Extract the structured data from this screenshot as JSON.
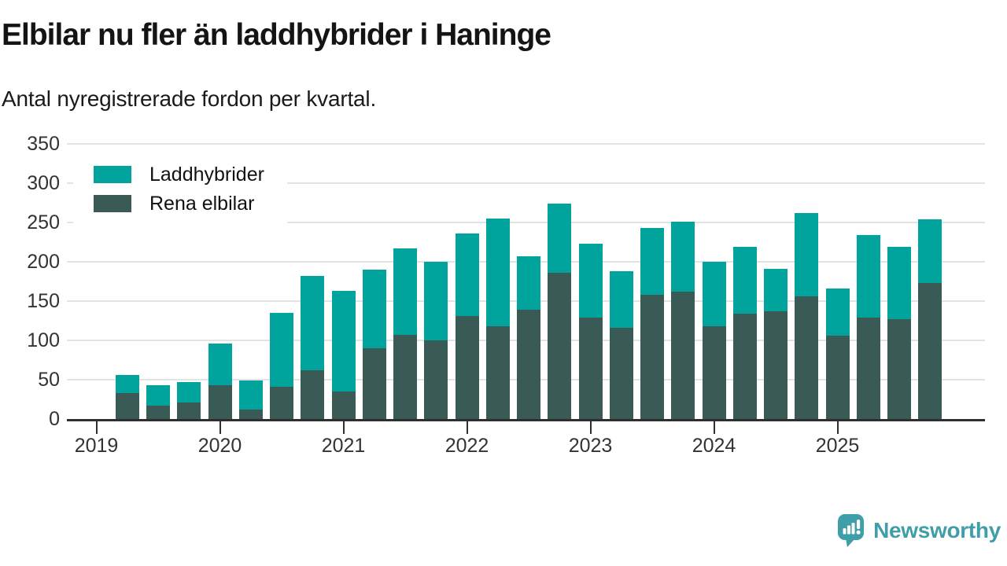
{
  "chart_data": {
    "type": "bar",
    "stacked": true,
    "title": "Elbilar nu fler än laddhybrider i Haninge",
    "subtitle": "Antal nyregistrerade fordon per kvartal.",
    "xlabel": "",
    "ylabel": "",
    "ylim": [
      0,
      350
    ],
    "yticks": [
      0,
      50,
      100,
      150,
      200,
      250,
      300,
      350
    ],
    "year_ticks": [
      "2019",
      "2020",
      "2021",
      "2022",
      "2023",
      "2024",
      "2025"
    ],
    "grid": true,
    "legend_position": "top-left",
    "legend_order": [
      "Laddhybrider",
      "Rena elbilar"
    ],
    "categories": [
      "2019 Q2",
      "2019 Q3",
      "2019 Q4",
      "2020 Q1",
      "2020 Q2",
      "2020 Q3",
      "2020 Q4",
      "2021 Q1",
      "2021 Q2",
      "2021 Q3",
      "2021 Q4",
      "2022 Q1",
      "2022 Q2",
      "2022 Q3",
      "2022 Q4",
      "2023 Q1",
      "2023 Q2",
      "2023 Q3",
      "2023 Q4",
      "2024 Q1",
      "2024 Q2",
      "2024 Q3",
      "2024 Q4",
      "2025 Q1",
      "2025 Q2",
      "2025 Q3",
      "2025 Q4"
    ],
    "series": [
      {
        "name": "Rena elbilar",
        "color": "#3a5a55",
        "values": [
          33,
          17,
          21,
          43,
          12,
          41,
          62,
          35,
          90,
          107,
          100,
          131,
          118,
          139,
          186,
          129,
          116,
          158,
          162,
          118,
          134,
          137,
          156,
          106,
          129,
          127,
          173
        ]
      },
      {
        "name": "Laddhybrider",
        "color": "#00a49c",
        "values": [
          23,
          26,
          26,
          53,
          37,
          94,
          120,
          128,
          100,
          110,
          100,
          105,
          137,
          68,
          88,
          94,
          72,
          85,
          89,
          82,
          85,
          54,
          106,
          60,
          105,
          92,
          81
        ]
      }
    ]
  },
  "legend": {
    "items": [
      {
        "label": "Laddhybrider",
        "color": "#00a49c"
      },
      {
        "label": "Rena elbilar",
        "color": "#3a5a55"
      }
    ]
  },
  "branding": {
    "logo_text": "Newsworthy",
    "logo_color": "#3f9ea7"
  },
  "colors": {
    "background": "#ffffff",
    "gridline": "#e3e3e3",
    "axis": "#2f2f2f",
    "axis_text": "#333333",
    "title_text": "#141414"
  }
}
